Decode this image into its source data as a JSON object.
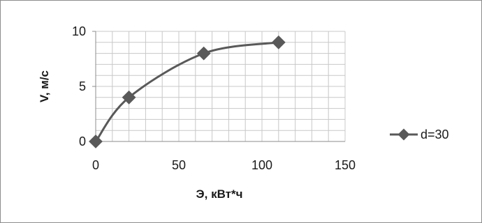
{
  "chart_data": {
    "type": "line",
    "xlabel": "Э, кВт*ч",
    "ylabel": "V, м/с",
    "xlim": [
      0,
      150
    ],
    "ylim": [
      0,
      10
    ],
    "x_ticks": [
      0,
      50,
      100,
      150
    ],
    "y_ticks": [
      0,
      5,
      10
    ],
    "x_minor_step": 10,
    "y_minor_step": 1,
    "grid": true,
    "legend_position": "right",
    "series": [
      {
        "name": "d=30",
        "color": "#595959",
        "marker": "diamond",
        "x": [
          0,
          20,
          65,
          110
        ],
        "y": [
          0,
          4,
          8,
          9
        ]
      }
    ]
  }
}
